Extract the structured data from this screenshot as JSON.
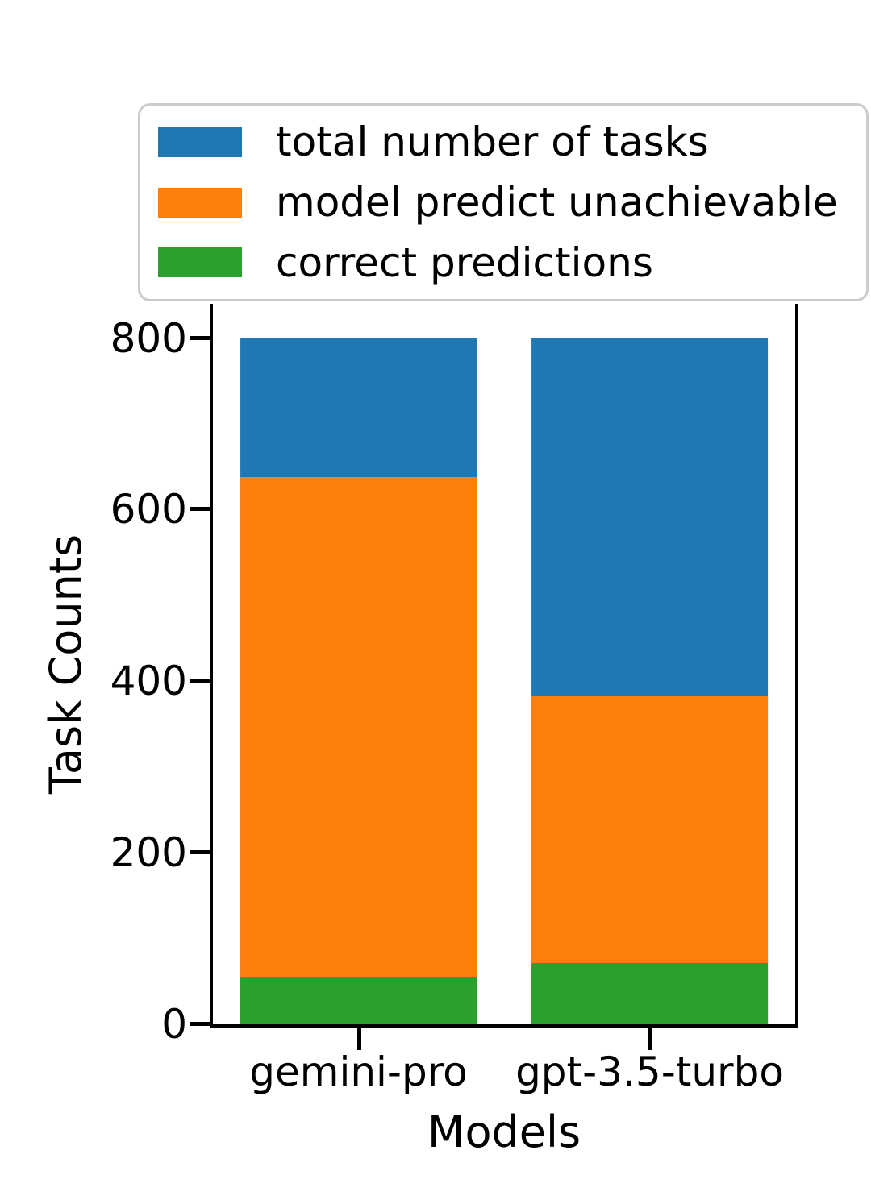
{
  "figure": {
    "background": "#ffffff",
    "axis_color": "#000000",
    "text_color": "#000000"
  },
  "chart_data": {
    "type": "bar",
    "subtype": "overlaid",
    "title": "",
    "xlabel": "Models",
    "ylabel": "Task Counts",
    "categories": [
      "gemini-pro",
      "gpt-3.5-turbo"
    ],
    "series": [
      {
        "name": "total number of tasks",
        "color": "#1f77b4",
        "values": [
          800,
          800
        ]
      },
      {
        "name": "model predict unachievable",
        "color": "#ff7f0e",
        "values": [
          638,
          383
        ]
      },
      {
        "name": "correct predictions",
        "color": "#2ca02c",
        "values": [
          55,
          71
        ]
      }
    ],
    "ylim": [
      0,
      840
    ],
    "yticks": [
      0,
      200,
      400,
      600,
      800
    ],
    "bar_width_fraction": 0.407,
    "grid": false,
    "legend": {
      "position": "upper-left",
      "background": "#ffffff",
      "border_color": "#cccccc"
    }
  }
}
